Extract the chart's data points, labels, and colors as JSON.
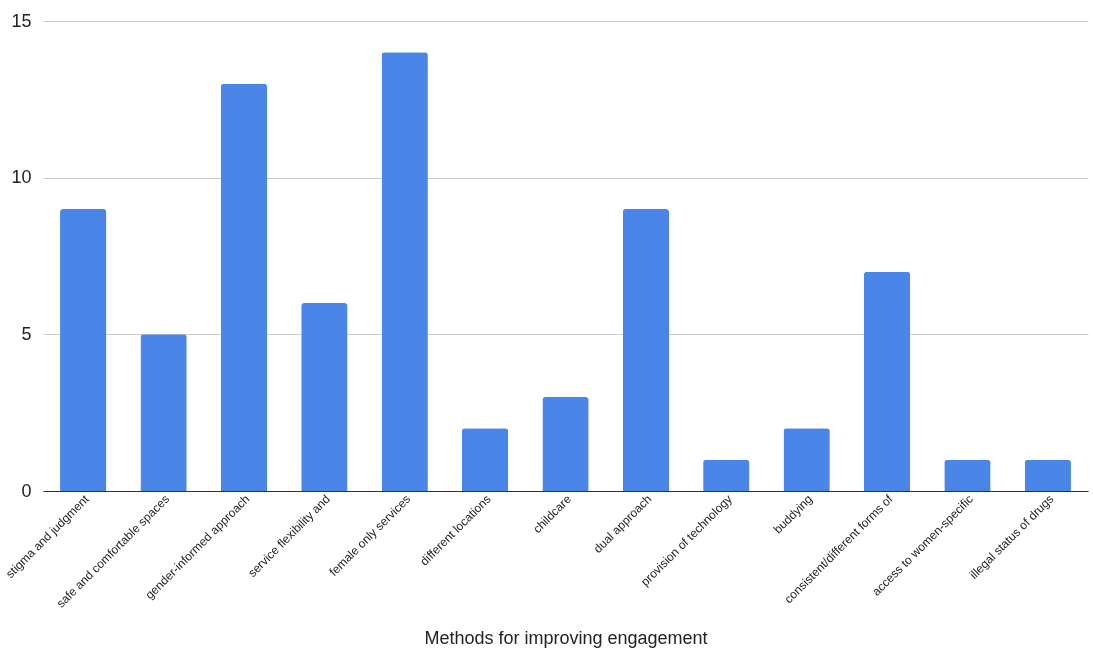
{
  "chart_data": {
    "type": "bar",
    "xlabel": "Methods for improving engagement",
    "categories": [
      "stigma and judgment",
      "safe and comfortable spaces",
      "gender-informed approach",
      "service flexibility and",
      "female only services",
      "different locations",
      "childcare",
      "dual approach",
      "provision of technology",
      "buddying",
      "consistent/different forms of",
      "access to women-specific",
      "illegal status of drugs"
    ],
    "values": [
      9,
      5,
      13,
      6,
      14,
      2,
      3,
      9,
      1,
      2,
      7,
      1,
      1
    ],
    "color": "#4a86e8",
    "ylim": [
      0,
      15
    ],
    "yticks": [
      0,
      5,
      10,
      15
    ],
    "grid": "y"
  }
}
